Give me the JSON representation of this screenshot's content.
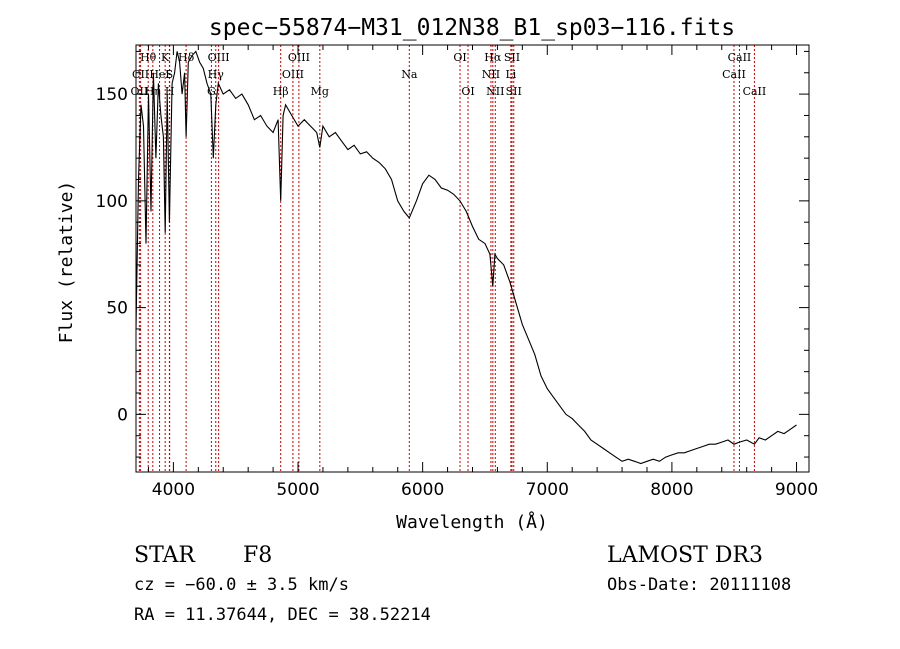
{
  "chart_data": {
    "type": "line",
    "title": "spec−55874−M31_012N38_B1_sp03−116.fits",
    "xlabel": "Wavelength (Å)",
    "ylabel": "Flux (relative)",
    "xlim": [
      3700,
      9100
    ],
    "ylim": [
      -27,
      173
    ],
    "xticks": [
      4000,
      5000,
      6000,
      7000,
      8000,
      9000
    ],
    "yticks": [
      0,
      50,
      100,
      150
    ],
    "series": [
      {
        "name": "spectrum",
        "x": [
          3700,
          3720,
          3740,
          3760,
          3780,
          3800,
          3820,
          3840,
          3860,
          3880,
          3900,
          3920,
          3934,
          3950,
          3968,
          3990,
          4010,
          4030,
          4050,
          4070,
          4090,
          4102,
          4120,
          4150,
          4180,
          4210,
          4240,
          4270,
          4300,
          4320,
          4340,
          4360,
          4400,
          4450,
          4500,
          4550,
          4600,
          4650,
          4700,
          4750,
          4800,
          4840,
          4861,
          4880,
          4900,
          4950,
          5000,
          5050,
          5100,
          5150,
          5175,
          5200,
          5250,
          5300,
          5350,
          5400,
          5450,
          5500,
          5550,
          5600,
          5650,
          5700,
          5750,
          5800,
          5850,
          5893,
          5950,
          6000,
          6050,
          6100,
          6150,
          6200,
          6250,
          6300,
          6350,
          6400,
          6450,
          6500,
          6540,
          6563,
          6580,
          6600,
          6650,
          6700,
          6750,
          6800,
          6850,
          6900,
          6950,
          7000,
          7050,
          7100,
          7150,
          7200,
          7250,
          7300,
          7350,
          7400,
          7450,
          7500,
          7550,
          7600,
          7650,
          7700,
          7750,
          7800,
          7850,
          7900,
          7950,
          8000,
          8050,
          8100,
          8150,
          8200,
          8250,
          8300,
          8350,
          8400,
          8450,
          8498,
          8542,
          8600,
          8662,
          8700,
          8750,
          8800,
          8850,
          8900,
          8950,
          9000
        ],
        "values": [
          40,
          110,
          145,
          135,
          80,
          150,
          95,
          160,
          120,
          155,
          140,
          130,
          85,
          150,
          90,
          155,
          160,
          170,
          165,
          150,
          160,
          130,
          165,
          168,
          170,
          165,
          162,
          155,
          150,
          120,
          145,
          155,
          150,
          152,
          148,
          150,
          145,
          138,
          140,
          135,
          132,
          138,
          100,
          140,
          145,
          140,
          135,
          138,
          135,
          132,
          125,
          135,
          130,
          132,
          128,
          124,
          126,
          122,
          123,
          120,
          118,
          115,
          110,
          100,
          95,
          92,
          100,
          108,
          112,
          110,
          106,
          105,
          103,
          100,
          95,
          88,
          82,
          80,
          75,
          60,
          75,
          73,
          70,
          62,
          52,
          42,
          35,
          28,
          18,
          12,
          8,
          4,
          0,
          -2,
          -5,
          -8,
          -12,
          -14,
          -16,
          -18,
          -20,
          -22,
          -21,
          -22,
          -23,
          -22,
          -21,
          -22,
          -20,
          -19,
          -18,
          -18,
          -17,
          -16,
          -15,
          -14,
          -14,
          -13,
          -12,
          -14,
          -13,
          -12,
          -14,
          -11,
          -12,
          -10,
          -8,
          -9,
          -7,
          -5
        ]
      }
    ],
    "lines": [
      {
        "label": "Hθ",
        "wl": 3798,
        "row": 1
      },
      {
        "label": "CII",
        "wl": 3737,
        "row": 2
      },
      {
        "label": "OII",
        "wl": 3727,
        "row": 3
      },
      {
        "label": "K",
        "wl": 3934,
        "row": 1
      },
      {
        "label": "HeI",
        "wl": 3889,
        "row": 2
      },
      {
        "label": "Hη",
        "wl": 3835,
        "row": 3
      },
      {
        "label": "Hδ",
        "wl": 4102,
        "row": 1
      },
      {
        "label": "S",
        "wl": 3968,
        "row": 2
      },
      {
        "label": "H",
        "wl": 3970,
        "row": 3
      },
      {
        "label": "OIII",
        "wl": 4363,
        "row": 1
      },
      {
        "label": "Hγ",
        "wl": 4340,
        "row": 2
      },
      {
        "label": "G",
        "wl": 4305,
        "row": 3
      },
      {
        "label": "OIII",
        "wl": 5007,
        "row": 1
      },
      {
        "label": "OIII",
        "wl": 4959,
        "row": 2
      },
      {
        "label": "Hβ",
        "wl": 4861,
        "row": 3
      },
      {
        "label": "Mg",
        "wl": 5175,
        "row": 3
      },
      {
        "label": "Na",
        "wl": 5893,
        "row": 2
      },
      {
        "label": "OI",
        "wl": 6300,
        "row": 1
      },
      {
        "label": "OI",
        "wl": 6364,
        "row": 3
      },
      {
        "label": "Hα",
        "wl": 6563,
        "row": 1
      },
      {
        "label": "SII",
        "wl": 6717,
        "row": 1
      },
      {
        "label": "NII",
        "wl": 6548,
        "row": 2
      },
      {
        "label": "Li",
        "wl": 6708,
        "row": 2
      },
      {
        "label": "NII",
        "wl": 6583,
        "row": 3
      },
      {
        "label": "SII",
        "wl": 6731,
        "row": 3
      },
      {
        "label": "CaII",
        "wl": 8542,
        "row": 1
      },
      {
        "label": "CaII",
        "wl": 8498,
        "row": 2
      },
      {
        "label": "CaII",
        "wl": 8662,
        "row": 3
      }
    ]
  },
  "info": {
    "object_class": "STAR",
    "subclass": "F8",
    "survey": "LAMOST DR3",
    "redshift": "cz = −60.0 ± 3.5 km/s",
    "obs_date": "Obs-Date: 20111108",
    "coords": "RA =  11.37644, DEC =  38.52214"
  },
  "colors": {
    "spectrum": "#000000",
    "line_markers": "#cc0000",
    "axes": "#000000"
  }
}
